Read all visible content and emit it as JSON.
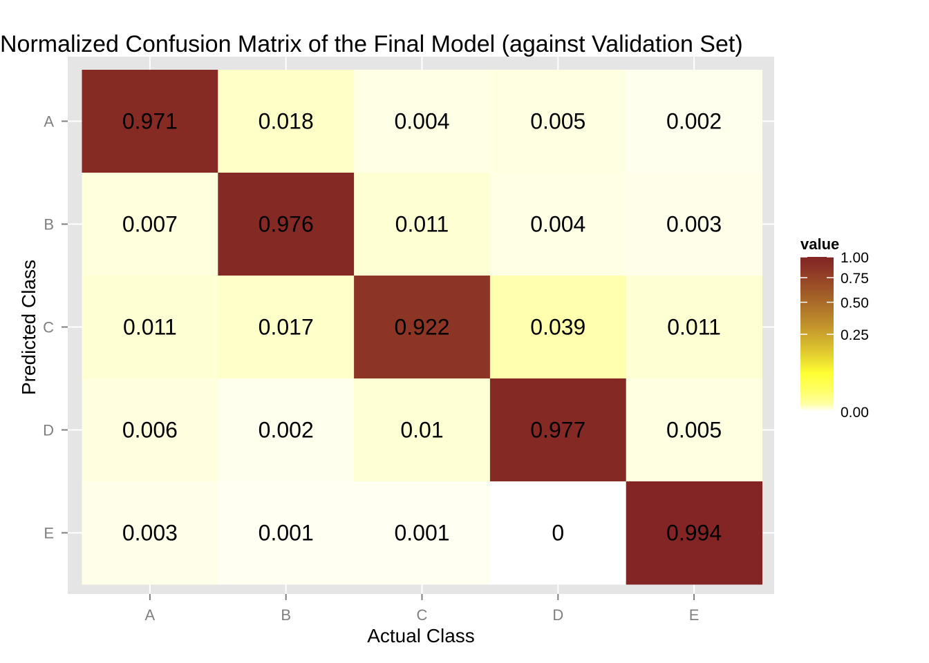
{
  "chart_data": {
    "type": "heatmap",
    "title": "Normalized Confusion Matrix of the Final Model (against Validation Set)",
    "xlabel": "Actual Class",
    "ylabel": "Predicted Class",
    "x_categories": [
      "A",
      "B",
      "C",
      "D",
      "E"
    ],
    "y_categories": [
      "A",
      "B",
      "C",
      "D",
      "E"
    ],
    "cells": [
      [
        "0.971",
        "0.018",
        "0.004",
        "0.005",
        "0.002"
      ],
      [
        "0.007",
        "0.976",
        "0.011",
        "0.004",
        "0.003"
      ],
      [
        "0.011",
        "0.017",
        "0.922",
        "0.039",
        "0.011"
      ],
      [
        "0.006",
        "0.002",
        "0.01",
        "0.977",
        "0.005"
      ],
      [
        "0.003",
        "0.001",
        "0.001",
        "0",
        "0.994"
      ]
    ],
    "legend": {
      "title": "value",
      "ticks": [
        "1.00",
        "0.75",
        "0.50",
        "0.25",
        "0.00"
      ],
      "tick_values": [
        1.0,
        0.75,
        0.5,
        0.25,
        0.0
      ]
    },
    "colors": {
      "panel_background": "#e5e5e5",
      "grid": "#ffffff",
      "low": "#ffffff",
      "mid": "#ffff33",
      "high": "#822424"
    }
  }
}
